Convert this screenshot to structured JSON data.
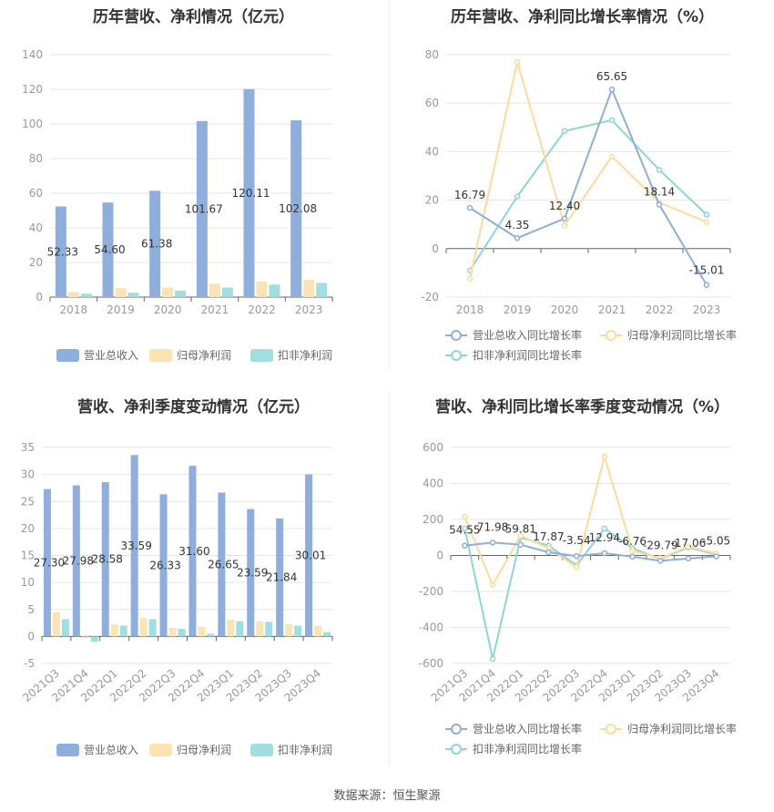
{
  "source": "数据来源：恒生聚源",
  "colors": {
    "revenue": "#8eaedc",
    "parent_profit": "#fce3b4",
    "nonrecurring_profit": "#9fdfe2",
    "revenue_line": "#8eaedc",
    "parent_line": "#fcdc9c",
    "nonrecurring_line": "#8ed6d6"
  },
  "chart_data": [
    {
      "type": "bar",
      "title": "历年营收、净利情况（亿元）",
      "categories": [
        "2018",
        "2019",
        "2020",
        "2021",
        "2022",
        "2023"
      ],
      "ylim": [
        0,
        140
      ],
      "yticks": [
        0,
        20,
        40,
        60,
        80,
        100,
        120,
        140
      ],
      "legend_position": "bottom",
      "series": [
        {
          "name": "营业总收入",
          "values": [
            52.33,
            54.6,
            61.38,
            101.67,
            120.11,
            102.08
          ],
          "labels": [
            "52.33",
            "54.60",
            "61.38",
            "101.67",
            "120.11",
            "102.08"
          ]
        },
        {
          "name": "归母净利润",
          "values": [
            3.0,
            5.2,
            5.5,
            7.8,
            9.0,
            10.0
          ]
        },
        {
          "name": "扣非净利润",
          "values": [
            2.0,
            2.6,
            3.7,
            5.5,
            7.2,
            8.2
          ]
        }
      ]
    },
    {
      "type": "line",
      "title": "历年营收、净利同比增长率情况（%）",
      "categories": [
        "2018",
        "2019",
        "2020",
        "2021",
        "2022",
        "2023"
      ],
      "ylim": [
        -20,
        80
      ],
      "yticks": [
        -20,
        0,
        20,
        40,
        60,
        80
      ],
      "legend_position": "bottom",
      "series": [
        {
          "name": "营业总收入同比增长率",
          "values": [
            16.79,
            4.35,
            12.4,
            65.65,
            18.14,
            -15.01
          ],
          "labels": [
            "16.79",
            "4.35",
            "12.40",
            "65.65",
            "18.14",
            "-15.01"
          ]
        },
        {
          "name": "归母净利润同比增长率",
          "values": [
            -12.5,
            77.0,
            9.5,
            38.0,
            19.0,
            11.0
          ]
        },
        {
          "name": "扣非净利润同比增长率",
          "values": [
            -9.0,
            21.5,
            48.5,
            53.0,
            32.5,
            14.0
          ]
        }
      ]
    },
    {
      "type": "bar",
      "title": "营收、净利季度变动情况（亿元）",
      "categories": [
        "2021Q3",
        "2021Q4",
        "2022Q1",
        "2022Q2",
        "2022Q3",
        "2022Q4",
        "2023Q1",
        "2023Q2",
        "2023Q3",
        "2023Q4"
      ],
      "ylim": [
        -5,
        35
      ],
      "yticks": [
        -5,
        0,
        5,
        10,
        15,
        20,
        25,
        30,
        35
      ],
      "legend_position": "bottom",
      "series": [
        {
          "name": "营业总收入",
          "values": [
            27.3,
            27.98,
            28.58,
            33.59,
            26.33,
            31.6,
            26.65,
            23.59,
            21.84,
            30.01
          ],
          "labels": [
            "27.30",
            "27.98",
            "28.58",
            "33.59",
            "26.33",
            "31.60",
            "26.65",
            "23.59",
            "21.84",
            "30.01"
          ]
        },
        {
          "name": "归母净利润",
          "values": [
            4.5,
            -0.3,
            2.2,
            3.4,
            1.6,
            1.8,
            3.1,
            2.8,
            2.3,
            2.0
          ]
        },
        {
          "name": "扣非净利润",
          "values": [
            3.2,
            -1.0,
            2.0,
            3.2,
            1.4,
            0.5,
            2.8,
            2.7,
            2.0,
            0.8
          ]
        }
      ]
    },
    {
      "type": "line",
      "title": "营收、净利同比增长率季度变动情况（%）",
      "categories": [
        "2021Q3",
        "2021Q4",
        "2022Q1",
        "2022Q2",
        "2022Q3",
        "2022Q4",
        "2023Q1",
        "2023Q2",
        "2023Q3",
        "2023Q4"
      ],
      "ylim": [
        -600,
        600
      ],
      "yticks": [
        -600,
        -400,
        -200,
        0,
        200,
        400,
        600
      ],
      "legend_position": "bottom",
      "series": [
        {
          "name": "营业总收入同比增长率",
          "values": [
            54.55,
            71.98,
            59.81,
            17.87,
            -3.54,
            12.94,
            -6.76,
            -29.79,
            -17.06,
            -5.05
          ],
          "labels": [
            "54.55",
            "71.98",
            "59.81",
            "17.87",
            "-3.54",
            "12.94",
            "-6.76",
            "-29.79",
            "-17.06",
            "-5.05"
          ]
        },
        {
          "name": "归母净利润同比增长率",
          "values": [
            215,
            -165,
            110,
            40,
            -65,
            550,
            25,
            -15,
            50,
            10
          ]
        },
        {
          "name": "扣非净利润同比增长率",
          "values": [
            150,
            -575,
            100,
            55,
            -55,
            150,
            40,
            -20,
            45,
            5
          ]
        }
      ]
    }
  ]
}
